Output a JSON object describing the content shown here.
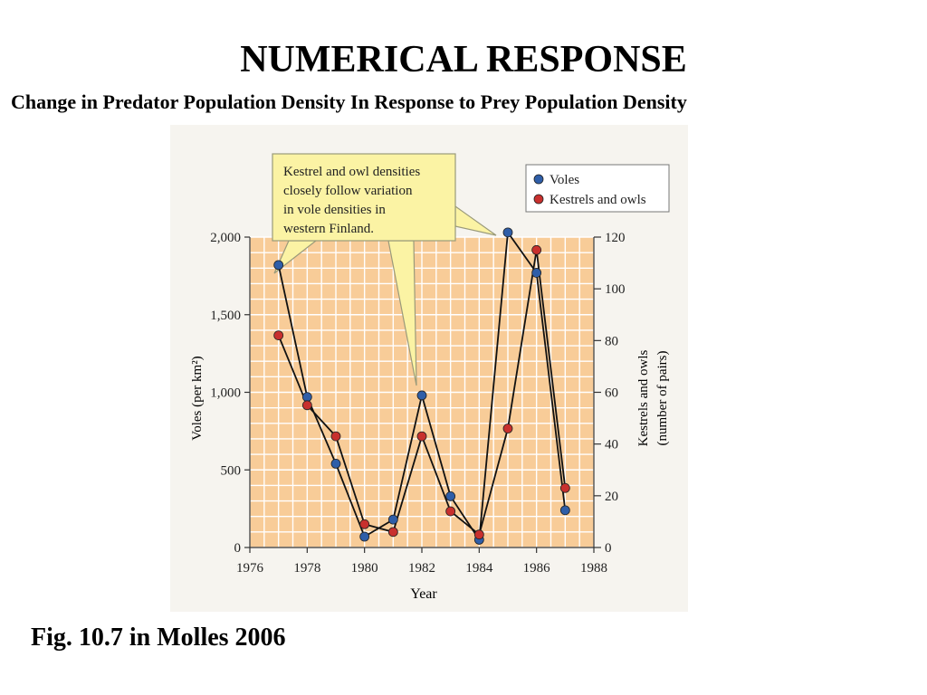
{
  "slide": {
    "title": "NUMERICAL RESPONSE",
    "subtitle": "Change in Predator Population Density In Response to Prey Population Density",
    "caption": "Fig. 10.7 in Molles 2006"
  },
  "chart_data": {
    "type": "line",
    "xlabel": "Year",
    "ylabel": "Voles (per km²)",
    "y2label_line1": "Kestrels and owls",
    "y2label_line2": "(number of pairs)",
    "xlim": [
      1976,
      1988
    ],
    "ylim": [
      0,
      2000
    ],
    "y2lim": [
      0,
      120
    ],
    "x_ticks": [
      "1976",
      "1978",
      "1980",
      "1982",
      "1984",
      "1986",
      "1988"
    ],
    "y_ticks": [
      "0",
      "500",
      "1,000",
      "1,500",
      "2,000"
    ],
    "y2_ticks": [
      "0",
      "20",
      "40",
      "60",
      "80",
      "100",
      "120"
    ],
    "grid": true,
    "legend_position": "top-right",
    "annotation": {
      "lines": [
        "Kestrel and owl densities",
        "closely follow variation",
        "in vole densities in",
        "western Finland."
      ]
    },
    "series": [
      {
        "name": "Voles",
        "axis": "left",
        "color": "#2f5ea8",
        "x": [
          1977,
          1978,
          1979,
          1980,
          1981,
          1982,
          1983,
          1984,
          1985,
          1986,
          1987
        ],
        "y": [
          1820,
          970,
          540,
          70,
          180,
          980,
          330,
          50,
          2030,
          1770,
          240
        ]
      },
      {
        "name": "Kestrels and owls",
        "axis": "right",
        "color": "#c8302e",
        "x": [
          1977,
          1978,
          1979,
          1980,
          1981,
          1982,
          1983,
          1984,
          1985,
          1986,
          1987
        ],
        "y": [
          82,
          55,
          43,
          9,
          6,
          43,
          14,
          5,
          46,
          115,
          23
        ]
      }
    ]
  },
  "colors": {
    "plot_background": "#f8cc98",
    "grid": "#ffffff",
    "callout_fill": "#fbf3a4",
    "callout_border": "#9a9a7a",
    "line": "#111111"
  }
}
